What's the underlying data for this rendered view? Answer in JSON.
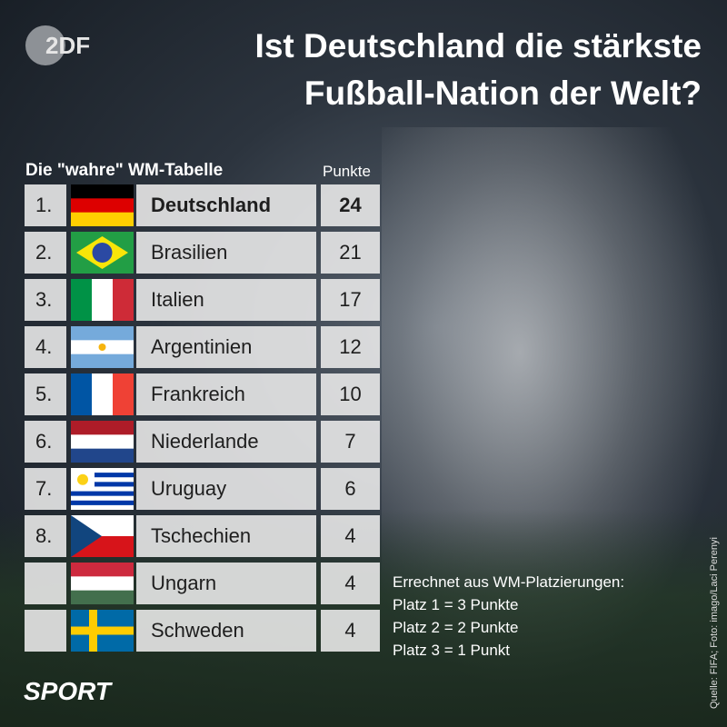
{
  "header": {
    "logo": "2DF",
    "title_lines": [
      "Ist Deutschland die stärkste",
      "Fußball-Nation der Welt?"
    ]
  },
  "table": {
    "title": "Die \"wahre\" WM-Tabelle",
    "points_header": "Punkte",
    "rows": [
      {
        "rank": "1.",
        "country": "Deutschland",
        "points": 24
      },
      {
        "rank": "2.",
        "country": "Brasilien",
        "points": 21
      },
      {
        "rank": "3.",
        "country": "Italien",
        "points": 17
      },
      {
        "rank": "4.",
        "country": "Argentinien",
        "points": 12
      },
      {
        "rank": "5.",
        "country": "Frankreich",
        "points": 10
      },
      {
        "rank": "6.",
        "country": "Niederlande",
        "points": 7
      },
      {
        "rank": "7.",
        "country": "Uruguay",
        "points": 6
      },
      {
        "rank": "8.",
        "country": "Tschechien",
        "points": 4
      },
      {
        "country": "Ungarn",
        "points": 4
      },
      {
        "country": "Schweden",
        "points": 4
      }
    ]
  },
  "note": {
    "lines": [
      "Errechnet aus WM-Platzierungen:",
      "Platz 1 = 3 Punkte",
      "Platz 2 = 2 Punkte",
      "Platz 3 = 1 Punkt"
    ]
  },
  "footer": {
    "section": "SPORT",
    "credit": "Quelle: FIFA; Foto: imago/Laci Perenyi"
  }
}
